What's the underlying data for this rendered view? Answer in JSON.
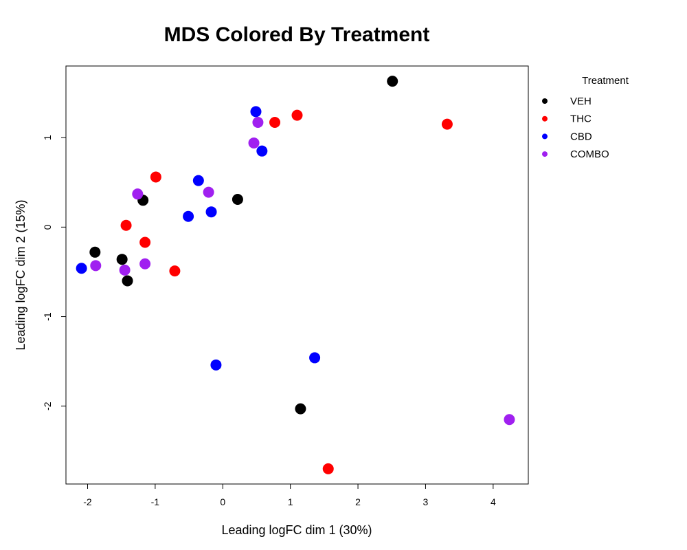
{
  "chart_data": {
    "type": "scatter",
    "title": "MDS Colored By Treatment",
    "xlabel": "Leading logFC dim 1 (30%)",
    "ylabel": "Leading logFC dim 2 (15%)",
    "xlim": [
      -2.32,
      4.52
    ],
    "ylim": [
      -2.87,
      1.8
    ],
    "xticks": [
      -2,
      -1,
      0,
      1,
      2,
      3,
      4
    ],
    "yticks": [
      -2,
      -1,
      0,
      1
    ],
    "grid": false,
    "legend": {
      "title": "Treatment",
      "position": "right-outside"
    },
    "series": [
      {
        "name": "VEH",
        "color": "#000000",
        "points": [
          {
            "x": -1.89,
            "y": -0.28
          },
          {
            "x": -1.49,
            "y": -0.36
          },
          {
            "x": -1.41,
            "y": -0.6
          },
          {
            "x": -1.18,
            "y": 0.3
          },
          {
            "x": 0.22,
            "y": 0.31
          },
          {
            "x": 1.15,
            "y": -2.03
          },
          {
            "x": 2.51,
            "y": 1.63
          }
        ]
      },
      {
        "name": "THC",
        "color": "#ff0000",
        "points": [
          {
            "x": -1.43,
            "y": 0.02
          },
          {
            "x": -1.15,
            "y": -0.17
          },
          {
            "x": -0.99,
            "y": 0.56
          },
          {
            "x": -0.71,
            "y": -0.49
          },
          {
            "x": 0.77,
            "y": 1.17
          },
          {
            "x": 1.1,
            "y": 1.25
          },
          {
            "x": 1.56,
            "y": -2.7
          },
          {
            "x": 3.32,
            "y": 1.15
          }
        ]
      },
      {
        "name": "CBD",
        "color": "#0000ff",
        "points": [
          {
            "x": -2.09,
            "y": -0.46
          },
          {
            "x": -0.51,
            "y": 0.12
          },
          {
            "x": -0.36,
            "y": 0.52
          },
          {
            "x": -0.17,
            "y": 0.17
          },
          {
            "x": -0.1,
            "y": -1.54
          },
          {
            "x": 0.49,
            "y": 1.29
          },
          {
            "x": 0.58,
            "y": 0.85
          },
          {
            "x": 1.36,
            "y": -1.46
          }
        ]
      },
      {
        "name": "COMBO",
        "color": "#a020f0",
        "points": [
          {
            "x": -1.88,
            "y": -0.43
          },
          {
            "x": -1.45,
            "y": -0.48
          },
          {
            "x": -1.26,
            "y": 0.37
          },
          {
            "x": -1.15,
            "y": -0.41
          },
          {
            "x": -0.21,
            "y": 0.39
          },
          {
            "x": 0.46,
            "y": 0.94
          },
          {
            "x": 0.52,
            "y": 1.17
          },
          {
            "x": 4.24,
            "y": -2.15
          }
        ]
      }
    ]
  }
}
